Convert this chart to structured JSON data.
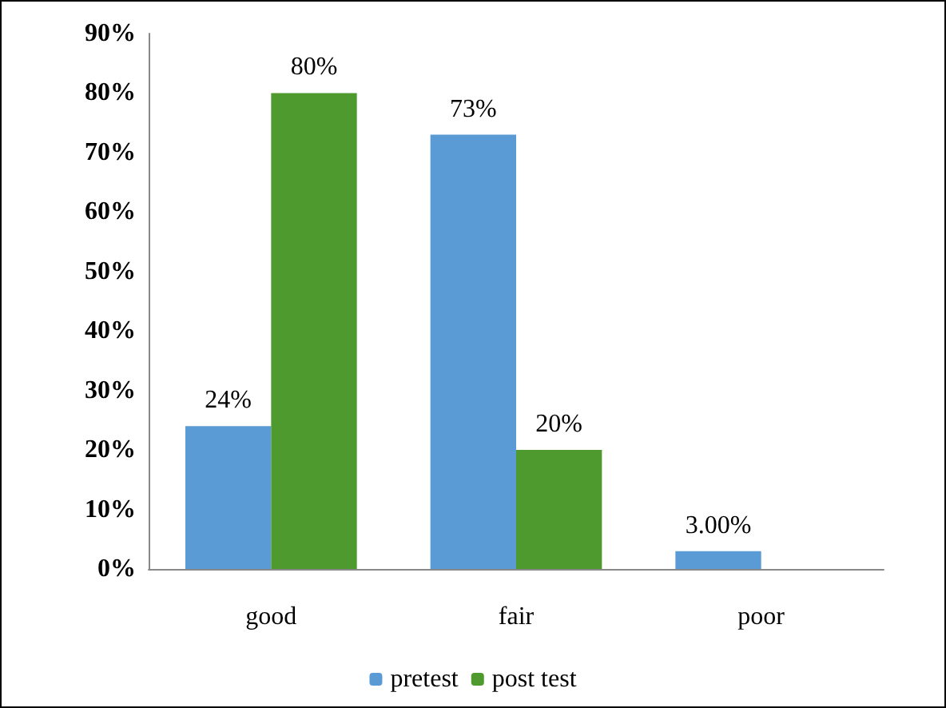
{
  "chart_data": {
    "type": "bar",
    "categories": [
      "good",
      "fair",
      "poor"
    ],
    "series": [
      {
        "name": "pretest",
        "color": "#5b9bd5",
        "values": [
          24,
          73,
          3
        ],
        "value_labels": [
          "24%",
          "73%",
          "3.00%"
        ]
      },
      {
        "name": "post test",
        "color": "#4e9a2f",
        "values": [
          80,
          20,
          null
        ],
        "value_labels": [
          "80%",
          "20%",
          null
        ]
      }
    ],
    "ylim": [
      0,
      90
    ],
    "yticks": [
      {
        "value": 0,
        "label": "0%"
      },
      {
        "value": 10,
        "label": "10%"
      },
      {
        "value": 20,
        "label": "20%"
      },
      {
        "value": 30,
        "label": "30%"
      },
      {
        "value": 40,
        "label": "40%"
      },
      {
        "value": 50,
        "label": "50%"
      },
      {
        "value": 60,
        "label": "60%"
      },
      {
        "value": 70,
        "label": "70%"
      },
      {
        "value": 80,
        "label": "80%"
      },
      {
        "value": 90,
        "label": "90%"
      }
    ],
    "grid": false,
    "legend": "bottom"
  }
}
